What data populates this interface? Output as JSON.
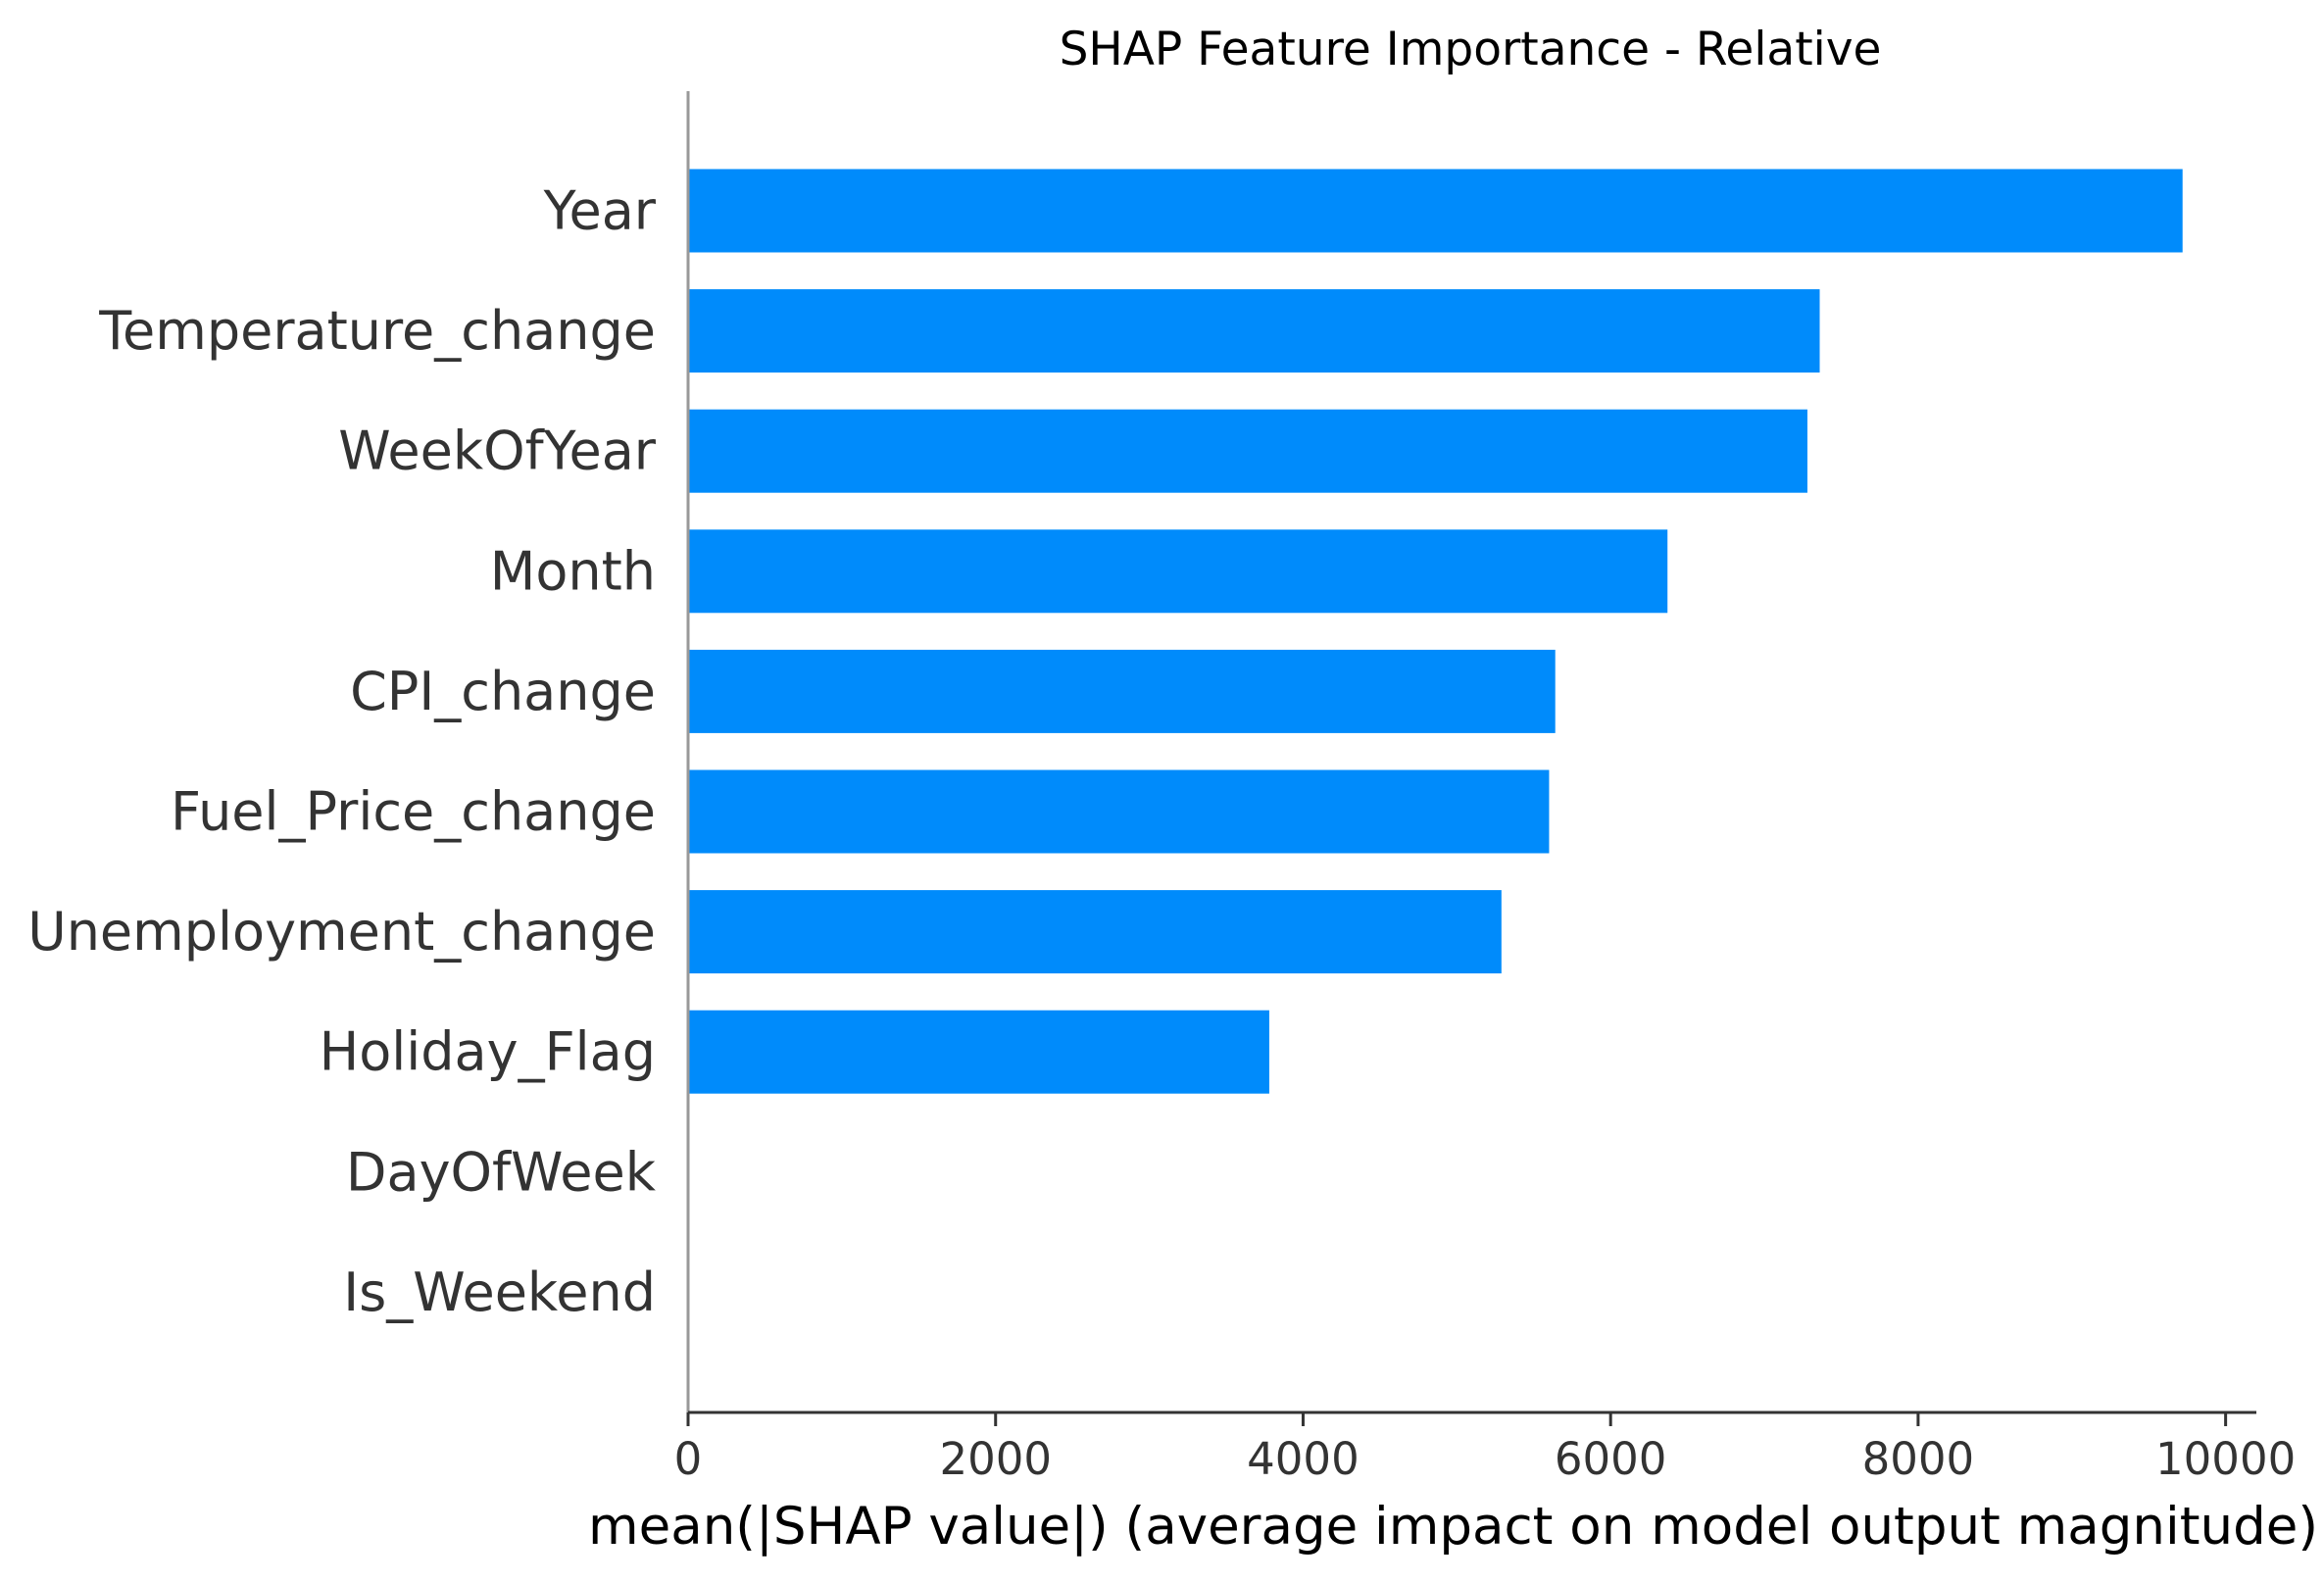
{
  "chart_data": {
    "type": "bar",
    "orientation": "horizontal",
    "title": "SHAP Feature Importance - Relative",
    "xlabel": "mean(|SHAP value|) (average impact on model output magnitude)",
    "ylabel": "",
    "xlim": [
      0,
      10200
    ],
    "xticks": [
      0,
      2000,
      4000,
      6000,
      8000,
      10000
    ],
    "xtick_labels": [
      "0",
      "2000",
      "4000",
      "6000",
      "8000",
      "10000"
    ],
    "categories": [
      "Year",
      "Temperature_change",
      "WeekOfYear",
      "Month",
      "CPI_change",
      "Fuel_Price_change",
      "Unemployment_change",
      "Holiday_Flag",
      "DayOfWeek",
      "Is_Weekend"
    ],
    "values": [
      9720,
      7360,
      7280,
      6370,
      5640,
      5600,
      5290,
      3780,
      0,
      0
    ],
    "grid": false,
    "legend": "none",
    "bar_color": "#008bfb",
    "axis_color": "#333333"
  }
}
